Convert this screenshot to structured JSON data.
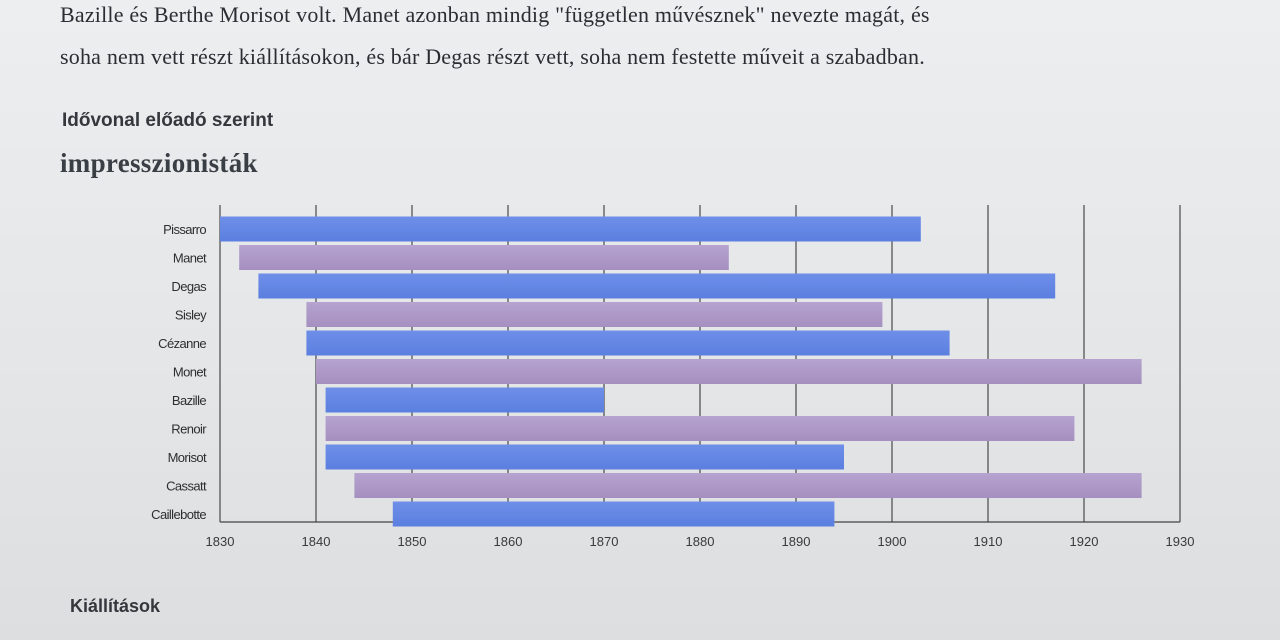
{
  "intro_lines": [
    "Bazille és Berthe Morisot volt. Manet azonban mindig \"független művésznek\" nevezte magát, és",
    "soha nem vett részt kiállításokon, és bár Degas részt vett, soha nem festette műveit a szabadban."
  ],
  "section_heading": "Idővonal előadó szerint",
  "next_heading": "Kiállítások",
  "colors": {
    "blue": "#5b7fe0",
    "purple": "#a58fc0",
    "axis": "#444444",
    "grid": "#555555"
  },
  "chart_data": {
    "type": "bar",
    "orientation": "horizontal-range",
    "title": "impresszionisták",
    "xlabel": "",
    "ylabel": "",
    "xlim": [
      1830,
      1930
    ],
    "x_ticks": [
      1830,
      1840,
      1850,
      1860,
      1870,
      1880,
      1890,
      1900,
      1910,
      1920,
      1930
    ],
    "grid": true,
    "categories": [
      "Pissarro",
      "Manet",
      "Degas",
      "Sisley",
      "Cézanne",
      "Monet",
      "Bazille",
      "Renoir",
      "Morisot",
      "Cassatt",
      "Caillebotte"
    ],
    "series": [
      {
        "values": [
          [
            1830,
            1903
          ],
          [
            1832,
            1883
          ],
          [
            1834,
            1917
          ],
          [
            1839,
            1899
          ],
          [
            1839,
            1906
          ],
          [
            1840,
            1926
          ],
          [
            1841,
            1870
          ],
          [
            1841,
            1919
          ],
          [
            1841,
            1895
          ],
          [
            1844,
            1926
          ],
          [
            1848,
            1894
          ]
        ]
      }
    ]
  }
}
